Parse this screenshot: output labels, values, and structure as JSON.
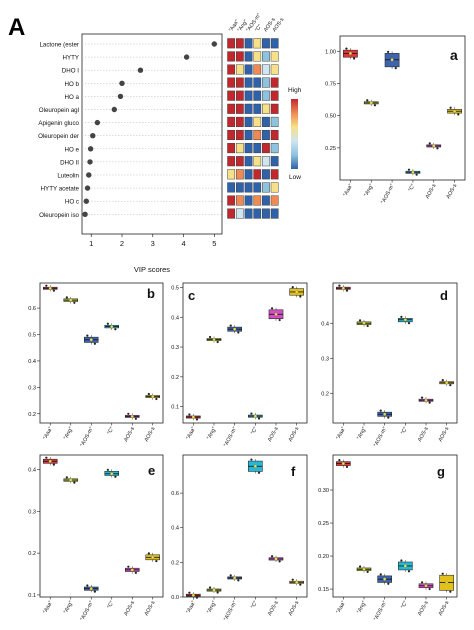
{
  "figure": {
    "panel_label_main": "A"
  },
  "vip": {
    "type": "scatter",
    "xlabel": "VIP scores",
    "xticks": [
      1,
      2,
      3,
      4,
      5
    ],
    "xlim": [
      0.7,
      5.25
    ],
    "features": [
      "Lactone (ester",
      "HYTY",
      "DHO I",
      "HO b",
      "HO a",
      "Oleuropein agl",
      "Apigenin gluco",
      "Oleuropein der",
      "HO e",
      "DHO II",
      "Luteolin",
      "HYTY acetate",
      "HO c",
      "Oleuropein iso"
    ],
    "scores": [
      5.0,
      4.1,
      2.6,
      2.0,
      1.95,
      1.75,
      1.2,
      1.05,
      0.98,
      0.96,
      0.92,
      0.88,
      0.84,
      0.8
    ],
    "heatmap_columns": [
      "\"Aaa\"",
      "\"Ang\"",
      "\"AOS-m\"",
      "\"C\"",
      "AOS-s",
      "AOS-s"
    ],
    "heatmap_levels": [
      [
        "high",
        "high",
        "low",
        "med",
        "low",
        "low"
      ],
      [
        "high",
        "high",
        "low",
        "med",
        "lowmid",
        "med"
      ],
      [
        "high",
        "med",
        "low",
        "midhigh",
        "midlow",
        "med"
      ],
      [
        "high",
        "high",
        "low",
        "low",
        "lowmid",
        "high"
      ],
      [
        "high",
        "high",
        "low",
        "low",
        "lowmid",
        "high"
      ],
      [
        "high",
        "high",
        "low",
        "low",
        "med",
        "high"
      ],
      [
        "high",
        "high",
        "low",
        "med",
        "low",
        "lowmid"
      ],
      [
        "high",
        "high",
        "low",
        "midhigh",
        "low",
        "high"
      ],
      [
        "high",
        "med",
        "low",
        "low",
        "high",
        "lowmid"
      ],
      [
        "high",
        "high",
        "low",
        "med",
        "midlow",
        "low"
      ],
      [
        "med",
        "midhigh",
        "low",
        "high",
        "low",
        "high"
      ],
      [
        "low",
        "low",
        "low",
        "low",
        "lowmid",
        "med"
      ],
      [
        "high",
        "midhigh",
        "low",
        "midhigh",
        "low",
        "midhigh"
      ],
      [
        "high",
        "midlow",
        "low",
        "low",
        "low",
        "low"
      ]
    ],
    "legend_high": "High",
    "legend_low": "Low",
    "level_colors": {
      "high": "#c0282e",
      "midhigh": "#f08a55",
      "med": "#f6e08a",
      "midlow": "#cfe5ef",
      "lowmid": "#8fc3dd",
      "low": "#2f62a8"
    }
  },
  "group_colors": [
    "#e0353b",
    "#b4cc28",
    "#3e64ad",
    "#26b8d4",
    "#d24ec1",
    "#e2c11c"
  ],
  "chart_data": [
    {
      "id": "a",
      "type": "box",
      "label": "a",
      "categories": [
        "\"Aaa\"",
        "\"Ang\"",
        "\"AOS-m\"",
        "\"C\"",
        "AOS-s",
        "AOS-s"
      ],
      "ylim": [
        0.0,
        1.12
      ],
      "yticks": [
        0.25,
        0.5,
        0.75,
        1.0
      ],
      "ytick_labels": [
        "0.25",
        "0.50",
        "0.75",
        "1.00"
      ],
      "values": [
        0.985,
        0.6,
        0.935,
        0.06,
        0.265,
        0.535
      ],
      "box_ranges": [
        [
          0.955,
          1.01
        ],
        [
          0.595,
          0.605
        ],
        [
          0.88,
          0.985
        ],
        [
          0.055,
          0.065
        ],
        [
          0.26,
          0.27
        ],
        [
          0.52,
          0.55
        ]
      ]
    },
    {
      "id": "b",
      "type": "box",
      "label": "b",
      "categories": [
        "\"Aaa\"",
        "\"Ang\"",
        "\"AOS-m\"",
        "\"C\"",
        "AOS-s",
        "AOS-s"
      ],
      "ylim": [
        0.165,
        0.695
      ],
      "yticks": [
        0.2,
        0.3,
        0.4,
        0.5,
        0.6
      ],
      "ytick_labels": [
        "0.2",
        "0.3",
        "0.4",
        "0.5",
        "0.6"
      ],
      "values": [
        0.675,
        0.63,
        0.48,
        0.53,
        0.19,
        0.265
      ],
      "box_ranges": [
        [
          0.672,
          0.678
        ],
        [
          0.625,
          0.635
        ],
        [
          0.47,
          0.49
        ],
        [
          0.525,
          0.535
        ],
        [
          0.186,
          0.194
        ],
        [
          0.262,
          0.268
        ]
      ]
    },
    {
      "id": "c",
      "type": "box",
      "label": "c",
      "categories": [
        "\"Aaa\"",
        "\"Ang\"",
        "\"AOS-m\"",
        "\"C\"",
        "AOS-s",
        "AOS-s"
      ],
      "ylim": [
        0.045,
        0.515
      ],
      "yticks": [
        0.1,
        0.2,
        0.3,
        0.4,
        0.5
      ],
      "ytick_labels": [
        "0.1",
        "0.2",
        "0.3",
        "0.4",
        "0.5"
      ],
      "values": [
        0.065,
        0.325,
        0.36,
        0.068,
        0.41,
        0.485
      ],
      "box_ranges": [
        [
          0.063,
          0.067
        ],
        [
          0.322,
          0.328
        ],
        [
          0.353,
          0.367
        ],
        [
          0.066,
          0.07
        ],
        [
          0.395,
          0.425
        ],
        [
          0.474,
          0.496
        ]
      ]
    },
    {
      "id": "d",
      "type": "box",
      "label": "d",
      "categories": [
        "\"Aaa\"",
        "\"Ang\"",
        "\"AOS-m\"",
        "\"C\"",
        "AOS-s",
        "AOS-s"
      ],
      "ylim": [
        0.115,
        0.515
      ],
      "yticks": [
        0.2,
        0.3,
        0.4
      ],
      "ytick_labels": [
        "0.2",
        "0.3",
        "0.4"
      ],
      "values": [
        0.5,
        0.4,
        0.14,
        0.41,
        0.18,
        0.23
      ],
      "box_ranges": [
        [
          0.497,
          0.503
        ],
        [
          0.396,
          0.404
        ],
        [
          0.134,
          0.146
        ],
        [
          0.404,
          0.414
        ],
        [
          0.177,
          0.183
        ],
        [
          0.227,
          0.233
        ]
      ]
    },
    {
      "id": "e",
      "type": "box",
      "label": "e",
      "categories": [
        "\"Aaa\"",
        "\"Ang\"",
        "\"AOS-m\"",
        "\"C\"",
        "AOS-s",
        "AOS-s"
      ],
      "ylim": [
        0.095,
        0.435
      ],
      "yticks": [
        0.1,
        0.2,
        0.3,
        0.4
      ],
      "ytick_labels": [
        "0.1",
        "0.2",
        "0.3",
        "0.4"
      ],
      "values": [
        0.42,
        0.375,
        0.115,
        0.39,
        0.16,
        0.19
      ],
      "box_ranges": [
        [
          0.415,
          0.425
        ],
        [
          0.372,
          0.378
        ],
        [
          0.111,
          0.119
        ],
        [
          0.386,
          0.396
        ],
        [
          0.156,
          0.164
        ],
        [
          0.184,
          0.196
        ]
      ]
    },
    {
      "id": "f",
      "type": "box",
      "label": "f",
      "categories": [
        "\"Aaa\"",
        "\"Ang\"",
        "\"AOS-m\"",
        "\"C\"",
        "AOS-s",
        "AOS-s"
      ],
      "ylim": [
        0.0,
        0.82
      ],
      "yticks": [
        0.0,
        0.2,
        0.4,
        0.6
      ],
      "ytick_labels": [
        "0.0",
        "0.2",
        "0.4",
        "0.6"
      ],
      "values": [
        0.01,
        0.04,
        0.11,
        0.755,
        0.22,
        0.085
      ],
      "box_ranges": [
        [
          0.008,
          0.012
        ],
        [
          0.036,
          0.044
        ],
        [
          0.105,
          0.115
        ],
        [
          0.725,
          0.785
        ],
        [
          0.213,
          0.227
        ],
        [
          0.082,
          0.088
        ]
      ]
    },
    {
      "id": "g",
      "type": "box",
      "label": "g",
      "categories": [
        "\"Aaa\"",
        "\"Ang\"",
        "\"AOS-m\"",
        "\"C\"",
        "AOS-s",
        "AOS-s"
      ],
      "ylim": [
        0.138,
        0.353
      ],
      "yticks": [
        0.15,
        0.2,
        0.25,
        0.3
      ],
      "ytick_labels": [
        "0.15",
        "0.20",
        "0.25",
        "0.30"
      ],
      "values": [
        0.34,
        0.18,
        0.165,
        0.185,
        0.155,
        0.16
      ],
      "box_ranges": [
        [
          0.337,
          0.343
        ],
        [
          0.178,
          0.182
        ],
        [
          0.16,
          0.17
        ],
        [
          0.179,
          0.191
        ],
        [
          0.152,
          0.158
        ],
        [
          0.148,
          0.171
        ]
      ]
    }
  ]
}
